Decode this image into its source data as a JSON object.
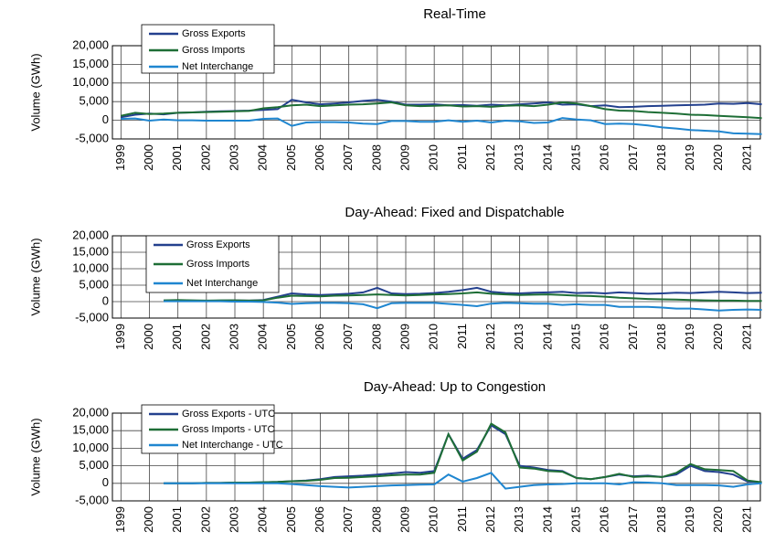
{
  "chart_data": [
    {
      "type": "line",
      "title": "Real-Time",
      "y_label": "Volume (GWh)",
      "grid": true,
      "legend": "upper left",
      "x": [
        1999,
        1999.5,
        2000,
        2000.5,
        2001,
        2001.5,
        2002,
        2002.5,
        2003,
        2003.5,
        2004,
        2004.5,
        2005,
        2005.5,
        2006,
        2006.5,
        2007,
        2007.5,
        2008,
        2008.5,
        2009,
        2009.5,
        2010,
        2010.5,
        2011,
        2011.5,
        2012,
        2012.5,
        2013,
        2013.5,
        2014,
        2014.5,
        2015,
        2015.5,
        2016,
        2016.5,
        2017,
        2017.5,
        2018,
        2018.5,
        2019,
        2019.5,
        2020,
        2020.5,
        2021,
        2021.5
      ],
      "xlim": [
        1998.7,
        2021.45
      ],
      "xticks": [
        1999,
        2000,
        2001,
        2002,
        2003,
        2004,
        2005,
        2006,
        2007,
        2008,
        2009,
        2010,
        2011,
        2012,
        2013,
        2014,
        2015,
        2016,
        2017,
        2018,
        2019,
        2020,
        2021
      ],
      "ylim": [
        -5000,
        20000
      ],
      "yticks": [
        {
          "value": -5000,
          "label": "-5,000"
        },
        0,
        {
          "value": 5000,
          "label": "5,000"
        },
        {
          "value": 10000,
          "label": "10,000"
        },
        {
          "value": 15000,
          "label": "15,000"
        },
        {
          "value": 20000,
          "label": "20,000"
        }
      ],
      "series": [
        {
          "name": "Gross Exports",
          "color": "#23408e",
          "values": [
            800,
            1500,
            1800,
            1600,
            2000,
            2100,
            2300,
            2400,
            2500,
            2600,
            2800,
            3000,
            5500,
            4800,
            4300,
            4500,
            4800,
            5200,
            5500,
            5000,
            4200,
            4200,
            4300,
            4000,
            4100,
            3900,
            4200,
            4000,
            4300,
            4500,
            4800,
            4200,
            4300,
            3800,
            4000,
            3500,
            3600,
            3800,
            3900,
            4000,
            4100,
            4200,
            4500,
            4400,
            4600,
            4300
          ]
        },
        {
          "name": "Gross Imports",
          "color": "#1e6e36",
          "values": [
            1200,
            2000,
            1700,
            1800,
            2000,
            2100,
            2200,
            2300,
            2400,
            2500,
            3200,
            3500,
            4000,
            4200,
            3800,
            4000,
            4200,
            4300,
            4500,
            4800,
            4000,
            3800,
            3900,
            4000,
            3700,
            3800,
            3600,
            3900,
            4000,
            3800,
            4200,
            4800,
            4500,
            3800,
            3000,
            2600,
            2500,
            2200,
            2000,
            1800,
            1500,
            1400,
            1200,
            1000,
            800,
            600
          ]
        },
        {
          "name": "Net Interchange",
          "color": "#1f86d0",
          "values": [
            400,
            500,
            -100,
            200,
            0,
            0,
            -100,
            -100,
            -100,
            -100,
            400,
            500,
            -1500,
            -600,
            -500,
            -500,
            -600,
            -900,
            -1000,
            -200,
            -200,
            -400,
            -400,
            0,
            -400,
            -100,
            -600,
            -100,
            -300,
            -700,
            -600,
            600,
            200,
            0,
            -1000,
            -900,
            -1000,
            -1400,
            -1900,
            -2200,
            -2600,
            -2800,
            -3000,
            -3500,
            -3600,
            -3700
          ]
        }
      ]
    },
    {
      "type": "line",
      "title": "Day-Ahead: Fixed and Dispatchable",
      "y_label": "Volume (GWh)",
      "grid": true,
      "legend": "upper left",
      "x": [
        1999,
        1999.5,
        2000,
        2000.5,
        2001,
        2001.5,
        2002,
        2002.5,
        2003,
        2003.5,
        2004,
        2004.5,
        2005,
        2005.5,
        2006,
        2006.5,
        2007,
        2007.5,
        2008,
        2008.5,
        2009,
        2009.5,
        2010,
        2010.5,
        2011,
        2011.5,
        2012,
        2012.5,
        2013,
        2013.5,
        2014,
        2014.5,
        2015,
        2015.5,
        2016,
        2016.5,
        2017,
        2017.5,
        2018,
        2018.5,
        2019,
        2019.5,
        2020,
        2020.5,
        2021,
        2021.5
      ],
      "xlim": [
        1998.7,
        2021.45
      ],
      "xticks": [
        1999,
        2000,
        2001,
        2002,
        2003,
        2004,
        2005,
        2006,
        2007,
        2008,
        2009,
        2010,
        2011,
        2012,
        2013,
        2014,
        2015,
        2016,
        2017,
        2018,
        2019,
        2020,
        2021
      ],
      "ylim": [
        -5000,
        20000
      ],
      "yticks": [
        {
          "value": -5000,
          "label": "-5,000"
        },
        0,
        {
          "value": 5000,
          "label": "5,000"
        },
        {
          "value": 10000,
          "label": "10,000"
        },
        {
          "value": 15000,
          "label": "15,000"
        },
        {
          "value": 20000,
          "label": "20,000"
        }
      ],
      "series": [
        {
          "name": "Gross Exports",
          "color": "#23408e",
          "values": [
            null,
            null,
            null,
            300,
            400,
            300,
            200,
            300,
            400,
            300,
            500,
            1500,
            2500,
            2200,
            2000,
            2200,
            2400,
            2800,
            4200,
            2500,
            2300,
            2400,
            2600,
            3000,
            3500,
            4200,
            3000,
            2600,
            2500,
            2700,
            2800,
            3000,
            2600,
            2700,
            2500,
            2800,
            2600,
            2400,
            2500,
            2700,
            2600,
            2800,
            3000,
            2800,
            2600,
            2700
          ]
        },
        {
          "name": "Gross Imports",
          "color": "#1e6e36",
          "values": [
            null,
            null,
            null,
            400,
            500,
            400,
            300,
            400,
            400,
            300,
            400,
            1200,
            1800,
            1700,
            1600,
            1800,
            1900,
            2000,
            2200,
            2000,
            1900,
            2000,
            2200,
            2300,
            2500,
            2800,
            2400,
            2200,
            2000,
            2100,
            2200,
            2000,
            1800,
            1700,
            1500,
            1200,
            1000,
            800,
            700,
            600,
            500,
            400,
            300,
            300,
            200,
            200
          ]
        },
        {
          "name": "Net Interchange",
          "color": "#1f86d0",
          "values": [
            null,
            null,
            null,
            100,
            100,
            100,
            100,
            100,
            0,
            0,
            -100,
            -300,
            -700,
            -500,
            -400,
            -400,
            -500,
            -800,
            -2000,
            -500,
            -400,
            -400,
            -400,
            -700,
            -1000,
            -1400,
            -600,
            -400,
            -500,
            -600,
            -600,
            -1000,
            -800,
            -1000,
            -1000,
            -1600,
            -1600,
            -1600,
            -1800,
            -2100,
            -2100,
            -2400,
            -2700,
            -2500,
            -2400,
            -2500
          ]
        }
      ]
    },
    {
      "type": "line",
      "title": "Day-Ahead: Up to Congestion",
      "y_label": "Volume (GWh)",
      "grid": true,
      "legend": "upper left",
      "x": [
        1999,
        1999.5,
        2000,
        2000.5,
        2001,
        2001.5,
        2002,
        2002.5,
        2003,
        2003.5,
        2004,
        2004.5,
        2005,
        2005.5,
        2006,
        2006.5,
        2007,
        2007.5,
        2008,
        2008.5,
        2009,
        2009.5,
        2010,
        2010.5,
        2011,
        2011.5,
        2012,
        2012.5,
        2013,
        2013.5,
        2014,
        2014.5,
        2015,
        2015.5,
        2016,
        2016.5,
        2017,
        2017.5,
        2018,
        2018.5,
        2019,
        2019.5,
        2020,
        2020.5,
        2021,
        2021.5
      ],
      "xlim": [
        1998.7,
        2021.45
      ],
      "xticks": [
        1999,
        2000,
        2001,
        2002,
        2003,
        2004,
        2005,
        2006,
        2007,
        2008,
        2009,
        2010,
        2011,
        2012,
        2013,
        2014,
        2015,
        2016,
        2017,
        2018,
        2019,
        2020,
        2021
      ],
      "ylim": [
        -5000,
        20000
      ],
      "yticks": [
        {
          "value": -5000,
          "label": "-5,000"
        },
        0,
        {
          "value": 5000,
          "label": "5,000"
        },
        {
          "value": 10000,
          "label": "10,000"
        },
        {
          "value": 15000,
          "label": "15,000"
        },
        {
          "value": 20000,
          "label": "20,000"
        }
      ],
      "series": [
        {
          "name": "Gross Exports - UTC",
          "color": "#23408e",
          "values": [
            null,
            null,
            null,
            0,
            0,
            0,
            100,
            100,
            200,
            200,
            300,
            400,
            600,
            800,
            1200,
            1800,
            2000,
            2200,
            2500,
            2800,
            3200,
            3000,
            3500,
            14000,
            7000,
            9500,
            16500,
            14000,
            5000,
            4500,
            3800,
            3500,
            1500,
            1200,
            1800,
            2500,
            2000,
            2200,
            1800,
            2500,
            5000,
            3500,
            3200,
            2500,
            500,
            300
          ]
        },
        {
          "name": "Gross Imports - UTC",
          "color": "#1e6e36",
          "values": [
            null,
            null,
            null,
            0,
            0,
            0,
            100,
            100,
            200,
            200,
            300,
            400,
            600,
            700,
            1000,
            1500,
            1600,
            1800,
            2000,
            2300,
            2500,
            2500,
            3000,
            14000,
            6500,
            9000,
            17000,
            14500,
            4500,
            4200,
            3500,
            3300,
            1500,
            1200,
            1800,
            2700,
            1800,
            2000,
            1800,
            3000,
            5500,
            4000,
            3800,
            3500,
            800,
            300
          ]
        },
        {
          "name": "Net Interchange - UTC",
          "color": "#1f86d0",
          "values": [
            null,
            null,
            null,
            0,
            0,
            0,
            0,
            0,
            0,
            0,
            0,
            0,
            -200,
            -500,
            -800,
            -1000,
            -1200,
            -1000,
            -800,
            -600,
            -500,
            -400,
            -300,
            2500,
            500,
            1500,
            3000,
            -1500,
            -1000,
            -500,
            -300,
            -200,
            0,
            0,
            0,
            -300,
            300,
            200,
            0,
            -500,
            -500,
            -500,
            -600,
            -1000,
            -300,
            0
          ]
        }
      ]
    }
  ]
}
